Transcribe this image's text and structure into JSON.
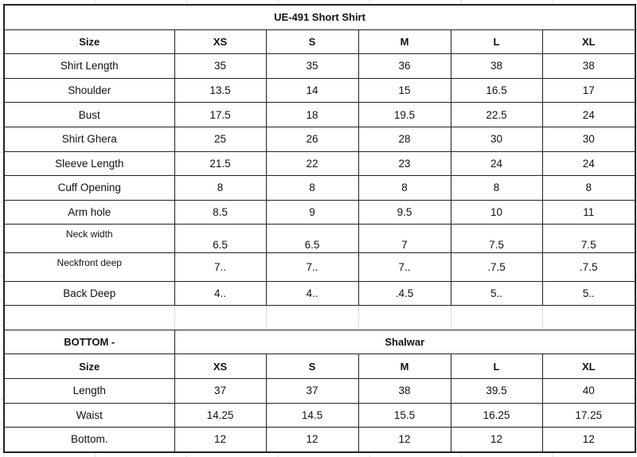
{
  "title": "UE-491    Short Shirt",
  "top": {
    "header": [
      "Size",
      "XS",
      "S",
      "M",
      "L",
      "XL"
    ],
    "rows": [
      [
        "Shirt Length",
        "35",
        "35",
        "36",
        "38",
        "38"
      ],
      [
        "Shoulder",
        "13.5",
        "14",
        "15",
        "16.5",
        "17"
      ],
      [
        "Bust",
        "17.5",
        "18",
        "19.5",
        "22.5",
        "24"
      ],
      [
        "Shirt Ghera",
        "25",
        "26",
        "28",
        "30",
        "30"
      ],
      [
        "Sleeve Length",
        "21.5",
        "22",
        "23",
        "24",
        "24"
      ],
      [
        "Cuff Opening",
        "8",
        "8",
        "8",
        "8",
        "8"
      ],
      [
        "Arm hole",
        "8.5",
        "9",
        "9.5",
        "10",
        "11"
      ],
      [
        "Neck width",
        "6.5",
        "6.5",
        "7",
        "7.5",
        "7.5"
      ],
      [
        "Neckfront deep",
        "7..",
        "7..",
        "7..",
        ".7.5",
        ".7.5"
      ],
      [
        "Back Deep",
        "4..",
        "4..",
        ".4.5",
        "5..",
        "5.."
      ]
    ]
  },
  "bottom": {
    "label": "BOTTOM -",
    "type": "Shalwar",
    "header": [
      "Size",
      "XS",
      "S",
      "M",
      "L",
      "XL"
    ],
    "rows": [
      [
        "Length",
        "37",
        "37",
        "38",
        "39.5",
        "40"
      ],
      [
        "Waist",
        "14.25",
        "14.5",
        "15.5",
        "16.25",
        "17.25"
      ],
      [
        "Bottom.",
        "12",
        "12",
        "12",
        "12",
        "12"
      ]
    ]
  }
}
